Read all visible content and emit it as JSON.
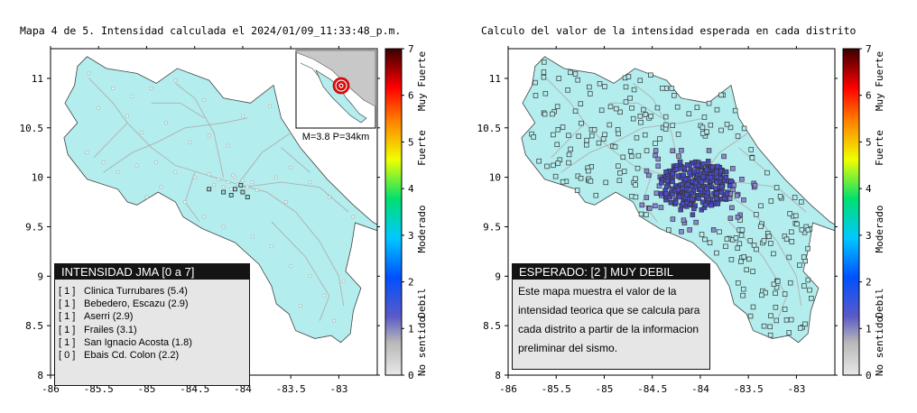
{
  "left_map": {
    "title": "Mapa 4 de 5. Intensidad calculada el 2024/01/09_11:33:48_p.m.",
    "inset_caption": "M=3.8 P=34km",
    "legend": {
      "header": "INTENSIDAD JMA [0 a 7]",
      "stations": [
        {
          "index": "[ 1 ]",
          "label": "Clinica Turrubares (5.4)"
        },
        {
          "index": "[ 1 ]",
          "label": "Bebedero, Escazu (2.9)"
        },
        {
          "index": "[ 1 ]",
          "label": "Aserri (2.9)"
        },
        {
          "index": "[ 1 ]",
          "label": "Frailes (3.1)"
        },
        {
          "index": "[ 1 ]",
          "label": "San Ignacio Acosta (1.8)"
        },
        {
          "index": "[ 0 ]",
          "label": "Ebais Cd. Colon (2.2)"
        }
      ]
    }
  },
  "right_map": {
    "title": "Calculo del valor de la intensidad esperada en cada distrito",
    "legend": {
      "header": "ESPERADO: [2 ] MUY DEBIL",
      "description": "Este mapa muestra el valor de la intensidad teorica que se calcula para cada distrito a partir de la informacion preliminar del sismo."
    }
  },
  "axes": {
    "x_ticks": [
      "-86",
      "-85.5",
      "-85",
      "-84.5",
      "-84",
      "-83.5",
      "-83"
    ],
    "y_ticks": [
      "11",
      "10.5",
      "10",
      "9.5",
      "9",
      "8.5",
      "8"
    ],
    "x_range": [
      -86,
      -82.6
    ],
    "y_range": [
      8,
      11.3
    ]
  },
  "colorbar": {
    "ticks": [
      "7",
      "6",
      "5",
      "4",
      "3",
      "2",
      "1",
      "0"
    ],
    "categories": [
      "Muy Fuerte",
      "Fuerte",
      "Moderado",
      "Debil",
      "No sentido"
    ],
    "colors": [
      "#e8e8e8",
      "#3a3aa8",
      "#0040ff",
      "#00bfff",
      "#00ff80",
      "#ffff00",
      "#ff8000",
      "#ff0000",
      "#400000"
    ]
  },
  "colors": {
    "land": "#b3eded",
    "land_outline": "#444444",
    "roads": "#b0b0b0",
    "station_fill": "#c8eeee",
    "district_fill_low": "#b3eded",
    "district_fill_mid": "#4848c8"
  }
}
